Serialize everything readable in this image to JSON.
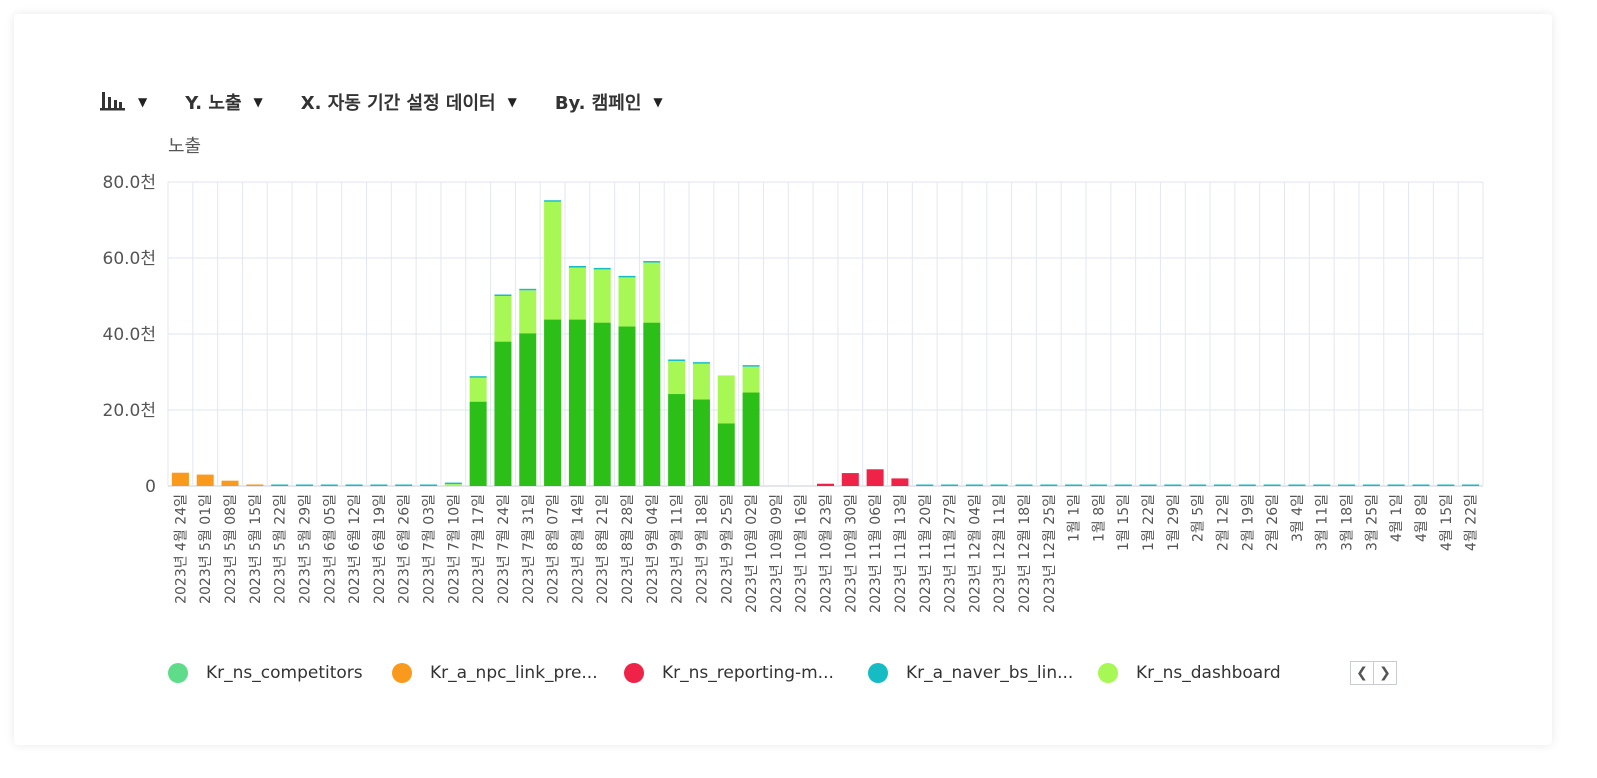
{
  "toolbar": {
    "chart_type_icon": "bar-chart-icon",
    "y_label": "Y. 노출",
    "x_label": "X. 자동 기간 설정 데이터",
    "by_label": "By. 캠페인",
    "dropdown_icon": "triangle-down-icon"
  },
  "legend": {
    "items": [
      {
        "label": "Kr_ns_competitors",
        "color": "#5edc8a"
      },
      {
        "label": "Kr_a_npc_link_pre...",
        "color": "#fa9a1c"
      },
      {
        "label": "Kr_ns_reporting-m...",
        "color": "#ef2247"
      },
      {
        "label": "Kr_a_naver_bs_lin...",
        "color": "#15bcc4"
      },
      {
        "label": "Kr_ns_dashboard",
        "color": "#a7f855"
      },
      {
        "label": "",
        "color": "#2bbf17"
      }
    ],
    "prev_icon": "chevron-left-icon",
    "next_icon": "chevron-right-icon"
  },
  "chart_data": {
    "type": "bar",
    "stacked": true,
    "ylabel": "노출",
    "xlabel": "",
    "ylim": [
      0,
      80000
    ],
    "yticks": [
      "0",
      "20.0천",
      "40.0천",
      "60.0천",
      "80.0천"
    ],
    "grid": true,
    "legend_position": "bottom",
    "categories": [
      "2023년 4월 24일",
      "2023년 5월 01일",
      "2023년 5월 08일",
      "2023년 5월 15일",
      "2023년 5월 22일",
      "2023년 5월 29일",
      "2023년 6월 05일",
      "2023년 6월 12일",
      "2023년 6월 19일",
      "2023년 6월 26일",
      "2023년 7월 03일",
      "2023년 7월 10일",
      "2023년 7월 17일",
      "2023년 7월 24일",
      "2023년 7월 31일",
      "2023년 8월 07일",
      "2023년 8월 14일",
      "2023년 8월 21일",
      "2023년 8월 28일",
      "2023년 9월 04일",
      "2023년 9월 11일",
      "2023년 9월 18일",
      "2023년 9월 25일",
      "2023년 10월 02일",
      "2023년 10월 09일",
      "2023년 10월 16일",
      "2023년 10월 23일",
      "2023년 10월 30일",
      "2023년 11월 06일",
      "2023년 11월 13일",
      "2023년 11월 20일",
      "2023년 11월 27일",
      "2023년 12월 04일",
      "2023년 12월 11일",
      "2023년 12월 18일",
      "2023년 12월 25일",
      "1월 1일",
      "1월 8일",
      "1월 15일",
      "1월 22일",
      "1월 29일",
      "2월 5일",
      "2월 12일",
      "2월 19일",
      "2월 26일",
      "3월 4일",
      "3월 11일",
      "3월 18일",
      "3월 25일",
      "4월 1일",
      "4월 8일",
      "4월 15일",
      "4월 22일"
    ],
    "series": [
      {
        "name": "Kr_ns_competitors",
        "color": "#5edc8a",
        "values": [
          0,
          0,
          0,
          0,
          0,
          0,
          0,
          0,
          0,
          0,
          0,
          0,
          0,
          0,
          0,
          0,
          0,
          0,
          0,
          0,
          0,
          0,
          0,
          0,
          0,
          0,
          0,
          0,
          0,
          0,
          0,
          0,
          0,
          0,
          0,
          0,
          0,
          0,
          0,
          0,
          0,
          0,
          0,
          0,
          0,
          0,
          0,
          0,
          0,
          0,
          0,
          0,
          0
        ]
      },
      {
        "name": "Kr_a_npc_link_pre...",
        "color": "#fa9a1c",
        "values": [
          3500,
          3000,
          1400,
          400,
          0,
          0,
          0,
          0,
          0,
          0,
          0,
          0,
          0,
          0,
          0,
          0,
          0,
          0,
          0,
          0,
          0,
          0,
          0,
          0,
          0,
          0,
          0,
          0,
          0,
          0,
          0,
          0,
          0,
          0,
          0,
          0,
          0,
          0,
          0,
          0,
          0,
          0,
          0,
          0,
          0,
          0,
          0,
          0,
          0,
          0,
          0,
          0,
          0
        ]
      },
      {
        "name": "Kr_ns_reporting-m...",
        "color": "#ef2247",
        "values": [
          0,
          0,
          0,
          0,
          0,
          0,
          0,
          0,
          0,
          0,
          0,
          0,
          0,
          0,
          0,
          0,
          0,
          0,
          0,
          0,
          0,
          0,
          0,
          0,
          0,
          0,
          600,
          3400,
          4400,
          2000,
          0,
          0,
          0,
          0,
          0,
          0,
          0,
          0,
          0,
          0,
          0,
          0,
          0,
          0,
          0,
          0,
          0,
          0,
          0,
          0,
          0,
          0,
          0
        ]
      },
      {
        "name": "",
        "color": "#2bbf17",
        "values": [
          0,
          0,
          0,
          0,
          0,
          0,
          0,
          0,
          0,
          0,
          0,
          0,
          22200,
          38000,
          40200,
          43800,
          43800,
          43000,
          42000,
          43000,
          24200,
          22800,
          16500,
          24600,
          0,
          0,
          0,
          0,
          0,
          0,
          0,
          0,
          0,
          0,
          0,
          0,
          0,
          0,
          0,
          0,
          0,
          0,
          0,
          0,
          0,
          0,
          0,
          0,
          0,
          0,
          0,
          0,
          0
        ]
      },
      {
        "name": "Kr_ns_dashboard",
        "color": "#a7f855",
        "values": [
          0,
          0,
          0,
          0,
          0,
          0,
          0,
          0,
          0,
          0,
          0,
          500,
          6300,
          12000,
          11300,
          31000,
          13700,
          14000,
          12900,
          15800,
          8700,
          9400,
          12600,
          6800,
          0,
          0,
          0,
          0,
          0,
          0,
          0,
          0,
          0,
          0,
          0,
          0,
          0,
          0,
          0,
          0,
          0,
          0,
          0,
          0,
          0,
          0,
          0,
          0,
          0,
          0,
          0,
          0,
          0
        ]
      },
      {
        "name": "Kr_a_naver_bs_lin...",
        "color": "#15bcc4",
        "values": [
          0,
          0,
          0,
          0,
          200,
          200,
          200,
          200,
          200,
          200,
          200,
          100,
          300,
          300,
          300,
          400,
          300,
          300,
          300,
          300,
          200,
          200,
          0,
          200,
          0,
          0,
          0,
          0,
          0,
          0,
          200,
          200,
          200,
          200,
          200,
          200,
          200,
          200,
          200,
          200,
          200,
          200,
          200,
          200,
          200,
          200,
          200,
          200,
          200,
          200,
          200,
          200,
          200
        ]
      }
    ]
  }
}
